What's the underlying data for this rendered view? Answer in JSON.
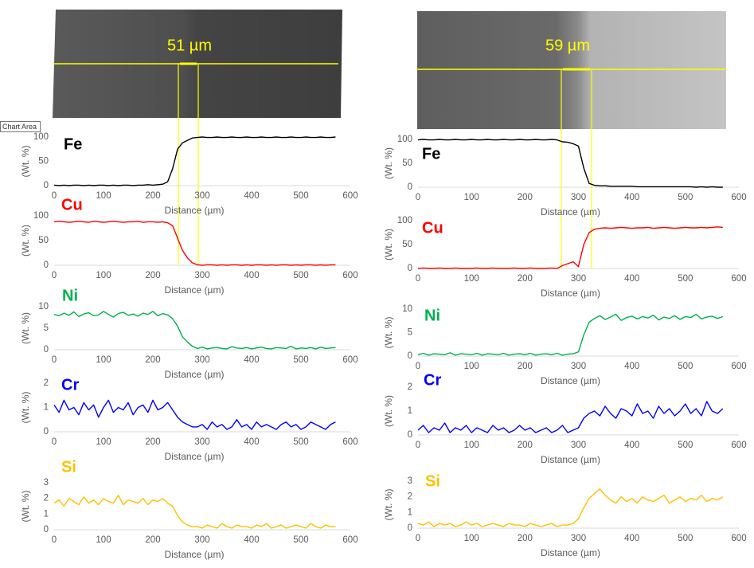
{
  "tooltip": "Chart Area",
  "images": [
    {
      "scale_label": "51 µm"
    },
    {
      "scale_label": "59 µm"
    }
  ],
  "chart_data": [
    {
      "type": "line",
      "title": "Fe",
      "color": "#000000",
      "xlabel": "Distance (µm)",
      "ylabel": "(Wt. %)",
      "xlim": [
        0,
        600
      ],
      "xticks": [
        0,
        100,
        200,
        300,
        400,
        500,
        600
      ],
      "ylim": [
        0,
        100
      ],
      "yticks": [
        0,
        50,
        100
      ],
      "x": [
        0,
        10,
        20,
        30,
        40,
        50,
        60,
        70,
        80,
        90,
        100,
        110,
        120,
        130,
        140,
        150,
        160,
        170,
        180,
        190,
        200,
        210,
        220,
        230,
        240,
        250,
        260,
        270,
        280,
        290,
        300,
        310,
        320,
        330,
        340,
        350,
        360,
        370,
        380,
        390,
        400,
        410,
        420,
        430,
        440,
        450,
        460,
        470,
        480,
        490,
        500,
        510,
        520,
        530,
        540,
        550,
        560,
        570
      ],
      "values": [
        1,
        0,
        1,
        0,
        1,
        1,
        0,
        1,
        0,
        1,
        1,
        0,
        1,
        0,
        1,
        1,
        0,
        1,
        1,
        2,
        1,
        2,
        3,
        8,
        35,
        75,
        88,
        93,
        98,
        99,
        100,
        99,
        99,
        100,
        99,
        99,
        100,
        99,
        99,
        100,
        99,
        99,
        100,
        99,
        99,
        100,
        99,
        99,
        100,
        99,
        99,
        100,
        99,
        99,
        100,
        99,
        99,
        100
      ]
    },
    {
      "type": "line",
      "title": "Cu",
      "color": "#ff0000",
      "xlabel": "Distance (µm)",
      "ylabel": "(Wt. %)",
      "xlim": [
        0,
        600
      ],
      "xticks": [
        0,
        100,
        200,
        300,
        400,
        500,
        600
      ],
      "ylim": [
        0,
        100
      ],
      "yticks": [
        0,
        50,
        100
      ],
      "x": [
        0,
        10,
        20,
        30,
        40,
        50,
        60,
        70,
        80,
        90,
        100,
        110,
        120,
        130,
        140,
        150,
        160,
        170,
        180,
        190,
        200,
        210,
        220,
        230,
        240,
        250,
        260,
        270,
        280,
        290,
        300,
        310,
        320,
        330,
        340,
        350,
        360,
        370,
        380,
        390,
        400,
        410,
        420,
        430,
        440,
        450,
        460,
        470,
        480,
        490,
        500,
        510,
        520,
        530,
        540,
        550,
        560,
        570
      ],
      "values": [
        88,
        89,
        88,
        87,
        88,
        89,
        88,
        87,
        89,
        88,
        87,
        88,
        89,
        88,
        87,
        88,
        88,
        89,
        87,
        88,
        88,
        87,
        88,
        86,
        80,
        55,
        30,
        15,
        5,
        1,
        0,
        1,
        1,
        0,
        1,
        0,
        1,
        1,
        0,
        1,
        0,
        1,
        1,
        0,
        1,
        0,
        1,
        1,
        0,
        1,
        0,
        1,
        1,
        0,
        1,
        0,
        1,
        1
      ]
    },
    {
      "type": "line",
      "title": "Ni",
      "color": "#00b050",
      "xlabel": "Distance (µm)",
      "ylabel": "(Wt. %)",
      "xlim": [
        0,
        600
      ],
      "xticks": [
        0,
        100,
        200,
        300,
        400,
        500,
        600
      ],
      "ylim": [
        0,
        10
      ],
      "yticks": [
        0,
        5,
        10
      ],
      "x": [
        0,
        10,
        20,
        30,
        40,
        50,
        60,
        70,
        80,
        90,
        100,
        110,
        120,
        130,
        140,
        150,
        160,
        170,
        180,
        190,
        200,
        210,
        220,
        230,
        240,
        250,
        260,
        270,
        280,
        290,
        300,
        310,
        320,
        330,
        340,
        350,
        360,
        370,
        380,
        390,
        400,
        410,
        420,
        430,
        440,
        450,
        460,
        470,
        480,
        490,
        500,
        510,
        520,
        530,
        540,
        550,
        560,
        570
      ],
      "values": [
        8.2,
        7.9,
        8.5,
        8.0,
        8.8,
        7.7,
        8.3,
        8.6,
        7.9,
        8.1,
        8.9,
        8.2,
        7.6,
        8.4,
        8.7,
        8.0,
        8.3,
        7.8,
        8.5,
        8.2,
        8.9,
        7.9,
        8.4,
        8.1,
        7.2,
        5.5,
        3.0,
        1.8,
        0.8,
        0.3,
        0.6,
        0.2,
        0.4,
        0.5,
        0.3,
        0.2,
        0.7,
        0.4,
        0.3,
        0.5,
        0.2,
        0.4,
        0.6,
        0.3,
        0.2,
        0.5,
        0.4,
        0.3,
        0.8,
        0.2,
        0.4,
        0.3,
        0.5,
        0.2,
        0.6,
        0.3,
        0.4,
        0.5
      ]
    },
    {
      "type": "line",
      "title": "Cr",
      "color": "#0000ff",
      "xlabel": "Distance (µm)",
      "ylabel": "(Wt. %)",
      "xlim": [
        0,
        600
      ],
      "xticks": [
        0,
        100,
        200,
        300,
        400,
        500,
        600
      ],
      "ylim": [
        0,
        2
      ],
      "yticks": [
        0,
        1,
        2
      ],
      "x": [
        0,
        10,
        20,
        30,
        40,
        50,
        60,
        70,
        80,
        90,
        100,
        110,
        120,
        130,
        140,
        150,
        160,
        170,
        180,
        190,
        200,
        210,
        220,
        230,
        240,
        250,
        260,
        270,
        280,
        290,
        300,
        310,
        320,
        330,
        340,
        350,
        360,
        370,
        380,
        390,
        400,
        410,
        420,
        430,
        440,
        450,
        460,
        470,
        480,
        490,
        500,
        510,
        520,
        530,
        540,
        550,
        560,
        570
      ],
      "values": [
        1.1,
        0.8,
        1.3,
        0.9,
        1.0,
        0.7,
        1.2,
        0.9,
        1.1,
        0.6,
        1.0,
        1.3,
        0.8,
        1.0,
        0.9,
        1.2,
        0.7,
        1.0,
        1.1,
        0.8,
        1.3,
        0.9,
        1.0,
        1.2,
        0.9,
        0.6,
        0.4,
        0.3,
        0.2,
        0.2,
        0.3,
        0.1,
        0.4,
        0.2,
        0.3,
        0.1,
        0.2,
        0.5,
        0.2,
        0.3,
        0.1,
        0.4,
        0.2,
        0.3,
        0.2,
        0.1,
        0.3,
        0.4,
        0.2,
        0.3,
        0.1,
        0.2,
        0.4,
        0.3,
        0.2,
        0.1,
        0.3,
        0.4
      ]
    },
    {
      "type": "line",
      "title": "Si",
      "color": "#ffc000",
      "xlabel": "Distance (µm)",
      "ylabel": "(Wt. %)",
      "xlim": [
        0,
        600
      ],
      "xticks": [
        0,
        100,
        200,
        300,
        400,
        500,
        600
      ],
      "ylim": [
        0,
        3
      ],
      "yticks": [
        0,
        1,
        2,
        3
      ],
      "x": [
        0,
        10,
        20,
        30,
        40,
        50,
        60,
        70,
        80,
        90,
        100,
        110,
        120,
        130,
        140,
        150,
        160,
        170,
        180,
        190,
        200,
        210,
        220,
        230,
        240,
        250,
        260,
        270,
        280,
        290,
        300,
        310,
        320,
        330,
        340,
        350,
        360,
        370,
        380,
        390,
        400,
        410,
        420,
        430,
        440,
        450,
        460,
        470,
        480,
        490,
        500,
        510,
        520,
        530,
        540,
        550,
        560,
        570
      ],
      "values": [
        1.7,
        1.9,
        1.5,
        2.0,
        1.8,
        1.6,
        2.1,
        1.7,
        1.9,
        1.6,
        2.0,
        1.8,
        1.7,
        2.2,
        1.6,
        1.9,
        1.8,
        1.7,
        2.0,
        1.6,
        1.9,
        1.8,
        2.0,
        1.7,
        1.5,
        0.9,
        0.5,
        0.3,
        0.2,
        0.2,
        0.1,
        0.3,
        0.2,
        0.1,
        0.4,
        0.2,
        0.1,
        0.3,
        0.2,
        0.2,
        0.1,
        0.3,
        0.2,
        0.4,
        0.1,
        0.2,
        0.3,
        0.1,
        0.2,
        0.3,
        0.2,
        0.1,
        0.4,
        0.2,
        0.1,
        0.3,
        0.2,
        0.2
      ]
    },
    {
      "type": "line",
      "title": "Fe",
      "color": "#000000",
      "xlabel": "Distance (µm)",
      "ylabel": "(Wt. %)",
      "xlim": [
        0,
        600
      ],
      "xticks": [
        0,
        100,
        200,
        300,
        400,
        500,
        600
      ],
      "ylim": [
        0,
        100
      ],
      "yticks": [
        0,
        50,
        100
      ],
      "x": [
        0,
        10,
        20,
        30,
        40,
        50,
        60,
        70,
        80,
        90,
        100,
        110,
        120,
        130,
        140,
        150,
        160,
        170,
        180,
        190,
        200,
        210,
        220,
        230,
        240,
        250,
        260,
        270,
        280,
        290,
        300,
        310,
        320,
        330,
        340,
        350,
        360,
        370,
        380,
        390,
        400,
        410,
        420,
        430,
        440,
        450,
        460,
        470,
        480,
        490,
        500,
        510,
        520,
        530,
        540,
        550,
        560,
        570
      ],
      "values": [
        99,
        100,
        99,
        99,
        100,
        99,
        99,
        100,
        99,
        99,
        100,
        99,
        99,
        100,
        99,
        99,
        100,
        99,
        99,
        100,
        99,
        99,
        100,
        99,
        99,
        100,
        99,
        95,
        94,
        91,
        86,
        40,
        8,
        4,
        3,
        3,
        2,
        2,
        2,
        2,
        2,
        1,
        1,
        1,
        1,
        1,
        1,
        1,
        1,
        1,
        1,
        1,
        0,
        1,
        0,
        1,
        0,
        0
      ]
    },
    {
      "type": "line",
      "title": "Cu",
      "color": "#ff0000",
      "xlabel": "Distance (µm)",
      "ylabel": "(Wt. %)",
      "xlim": [
        0,
        600
      ],
      "xticks": [
        0,
        100,
        200,
        300,
        400,
        500,
        600
      ],
      "ylim": [
        0,
        100
      ],
      "yticks": [
        0,
        50,
        100
      ],
      "x": [
        0,
        10,
        20,
        30,
        40,
        50,
        60,
        70,
        80,
        90,
        100,
        110,
        120,
        130,
        140,
        150,
        160,
        170,
        180,
        190,
        200,
        210,
        220,
        230,
        240,
        250,
        260,
        270,
        280,
        290,
        300,
        310,
        320,
        330,
        340,
        350,
        360,
        370,
        380,
        390,
        400,
        410,
        420,
        430,
        440,
        450,
        460,
        470,
        480,
        490,
        500,
        510,
        520,
        530,
        540,
        550,
        560,
        570
      ],
      "values": [
        0,
        1,
        0,
        0,
        1,
        0,
        0,
        1,
        0,
        0,
        0,
        1,
        0,
        0,
        1,
        0,
        0,
        0,
        1,
        0,
        0,
        1,
        0,
        0,
        0,
        1,
        0,
        6,
        10,
        14,
        4,
        50,
        75,
        82,
        84,
        85,
        84,
        85,
        86,
        85,
        84,
        85,
        85,
        86,
        84,
        85,
        86,
        85,
        84,
        85,
        86,
        85,
        85,
        86,
        85,
        86,
        87,
        86
      ]
    },
    {
      "type": "line",
      "title": "Ni",
      "color": "#00b050",
      "xlabel": "Distance (µm)",
      "ylabel": "(Wt. %)",
      "xlim": [
        0,
        600
      ],
      "xticks": [
        0,
        100,
        200,
        300,
        400,
        500,
        600
      ],
      "ylim": [
        0,
        10
      ],
      "yticks": [
        0,
        5,
        10
      ],
      "x": [
        0,
        10,
        20,
        30,
        40,
        50,
        60,
        70,
        80,
        90,
        100,
        110,
        120,
        130,
        140,
        150,
        160,
        170,
        180,
        190,
        200,
        210,
        220,
        230,
        240,
        250,
        260,
        270,
        280,
        290,
        300,
        310,
        320,
        330,
        340,
        350,
        360,
        370,
        380,
        390,
        400,
        410,
        420,
        430,
        440,
        450,
        460,
        470,
        480,
        490,
        500,
        510,
        520,
        530,
        540,
        550,
        560,
        570
      ],
      "values": [
        0.3,
        0.6,
        0.2,
        0.5,
        0.4,
        0.3,
        0.7,
        0.2,
        0.5,
        0.4,
        0.3,
        0.6,
        0.2,
        0.5,
        0.4,
        0.3,
        0.6,
        0.2,
        0.4,
        0.5,
        0.3,
        0.6,
        0.2,
        0.4,
        0.5,
        0.3,
        0.6,
        0.2,
        0.4,
        0.5,
        0.9,
        4.5,
        7.2,
        8.0,
        8.6,
        7.8,
        8.3,
        8.9,
        7.6,
        8.2,
        8.5,
        7.9,
        8.4,
        8.1,
        8.7,
        7.7,
        8.3,
        8.0,
        8.6,
        7.8,
        8.4,
        8.2,
        8.9,
        7.9,
        8.3,
        8.5,
        8.0,
        8.4
      ]
    },
    {
      "type": "line",
      "title": "Cr",
      "color": "#0000ff",
      "xlabel": "Distance (µm)",
      "ylabel": "(Wt. %)",
      "xlim": [
        0,
        600
      ],
      "xticks": [
        0,
        100,
        200,
        300,
        400,
        500,
        600
      ],
      "ylim": [
        0,
        2
      ],
      "yticks": [
        0,
        1,
        2
      ],
      "x": [
        0,
        10,
        20,
        30,
        40,
        50,
        60,
        70,
        80,
        90,
        100,
        110,
        120,
        130,
        140,
        150,
        160,
        170,
        180,
        190,
        200,
        210,
        220,
        230,
        240,
        250,
        260,
        270,
        280,
        290,
        300,
        310,
        320,
        330,
        340,
        350,
        360,
        370,
        380,
        390,
        400,
        410,
        420,
        430,
        440,
        450,
        460,
        470,
        480,
        490,
        500,
        510,
        520,
        530,
        540,
        550,
        560,
        570
      ],
      "values": [
        0.2,
        0.4,
        0.1,
        0.3,
        0.2,
        0.5,
        0.1,
        0.3,
        0.2,
        0.4,
        0.1,
        0.3,
        0.2,
        0.1,
        0.4,
        0.2,
        0.3,
        0.1,
        0.2,
        0.4,
        0.2,
        0.3,
        0.1,
        0.2,
        0.3,
        0.1,
        0.2,
        0.4,
        0.1,
        0.2,
        0.3,
        0.7,
        0.9,
        1.0,
        0.8,
        1.2,
        0.9,
        0.7,
        1.1,
        1.0,
        0.8,
        1.3,
        0.9,
        1.0,
        0.7,
        1.2,
        0.9,
        1.1,
        0.8,
        1.0,
        1.3,
        0.9,
        1.1,
        0.8,
        1.4,
        1.0,
        0.9,
        1.1
      ]
    },
    {
      "type": "line",
      "title": "Si",
      "color": "#ffc000",
      "xlabel": "Distance (µm)",
      "ylabel": "(Wt. %)",
      "xlim": [
        0,
        600
      ],
      "xticks": [
        0,
        100,
        200,
        300,
        400,
        500,
        600
      ],
      "ylim": [
        0,
        3
      ],
      "yticks": [
        0,
        1,
        2,
        3
      ],
      "x": [
        0,
        10,
        20,
        30,
        40,
        50,
        60,
        70,
        80,
        90,
        100,
        110,
        120,
        130,
        140,
        150,
        160,
        170,
        180,
        190,
        200,
        210,
        220,
        230,
        240,
        250,
        260,
        270,
        280,
        290,
        300,
        310,
        320,
        330,
        340,
        350,
        360,
        370,
        380,
        390,
        400,
        410,
        420,
        430,
        440,
        450,
        460,
        470,
        480,
        490,
        500,
        510,
        520,
        530,
        540,
        550,
        560,
        570
      ],
      "values": [
        0.3,
        0.2,
        0.4,
        0.1,
        0.3,
        0.2,
        0.3,
        0.1,
        0.2,
        0.4,
        0.2,
        0.3,
        0.1,
        0.2,
        0.3,
        0.2,
        0.1,
        0.3,
        0.2,
        0.2,
        0.1,
        0.3,
        0.2,
        0.1,
        0.2,
        0.3,
        0.1,
        0.2,
        0.2,
        0.3,
        0.6,
        1.3,
        1.9,
        2.2,
        2.5,
        2.1,
        1.8,
        1.6,
        2.0,
        1.7,
        1.9,
        1.6,
        2.0,
        1.8,
        1.7,
        1.9,
        2.1,
        1.6,
        1.8,
        2.0,
        1.7,
        1.9,
        1.8,
        2.1,
        1.7,
        1.9,
        1.8,
        2.0
      ]
    }
  ]
}
